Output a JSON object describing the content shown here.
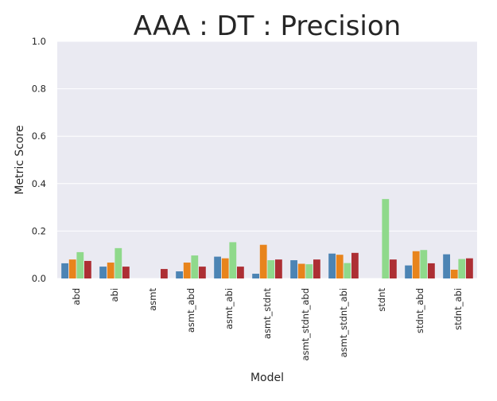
{
  "chart_data": {
    "type": "bar",
    "title": "AAA : DT : Precision",
    "xlabel": "Model",
    "ylabel": "Metric Score",
    "ylim": [
      0,
      1.0
    ],
    "yticks": [
      "0.0",
      "0.2",
      "0.4",
      "0.6",
      "0.8",
      "1.0"
    ],
    "grid": true,
    "legend": "none",
    "background": "#eaeaf2",
    "gridColor": "#ffffff",
    "categories": [
      "abd",
      "abi",
      "asmt",
      "asmt_abd",
      "asmt_abi",
      "asmt_stdnt",
      "asmt_stdnt_abd",
      "asmt_stdnt_abi",
      "stdnt",
      "stdnt_abd",
      "stdnt_abi"
    ],
    "series": [
      {
        "color": "#4c84b4",
        "values": [
          0.064,
          0.05,
          0.0,
          0.03,
          0.092,
          0.02,
          0.077,
          0.105,
          0.0,
          0.055,
          0.102
        ]
      },
      {
        "color": "#e8841c",
        "values": [
          0.08,
          0.067,
          0.0,
          0.067,
          0.085,
          0.142,
          0.062,
          0.1,
          0.0,
          0.115,
          0.037
        ]
      },
      {
        "color": "#8fd98b",
        "values": [
          0.111,
          0.128,
          0.0,
          0.097,
          0.153,
          0.077,
          0.06,
          0.065,
          0.335,
          0.12,
          0.082
        ]
      },
      {
        "color": "#ad2f34",
        "values": [
          0.074,
          0.05,
          0.04,
          0.05,
          0.05,
          0.08,
          0.08,
          0.108,
          0.08,
          0.064,
          0.085
        ]
      }
    ]
  }
}
